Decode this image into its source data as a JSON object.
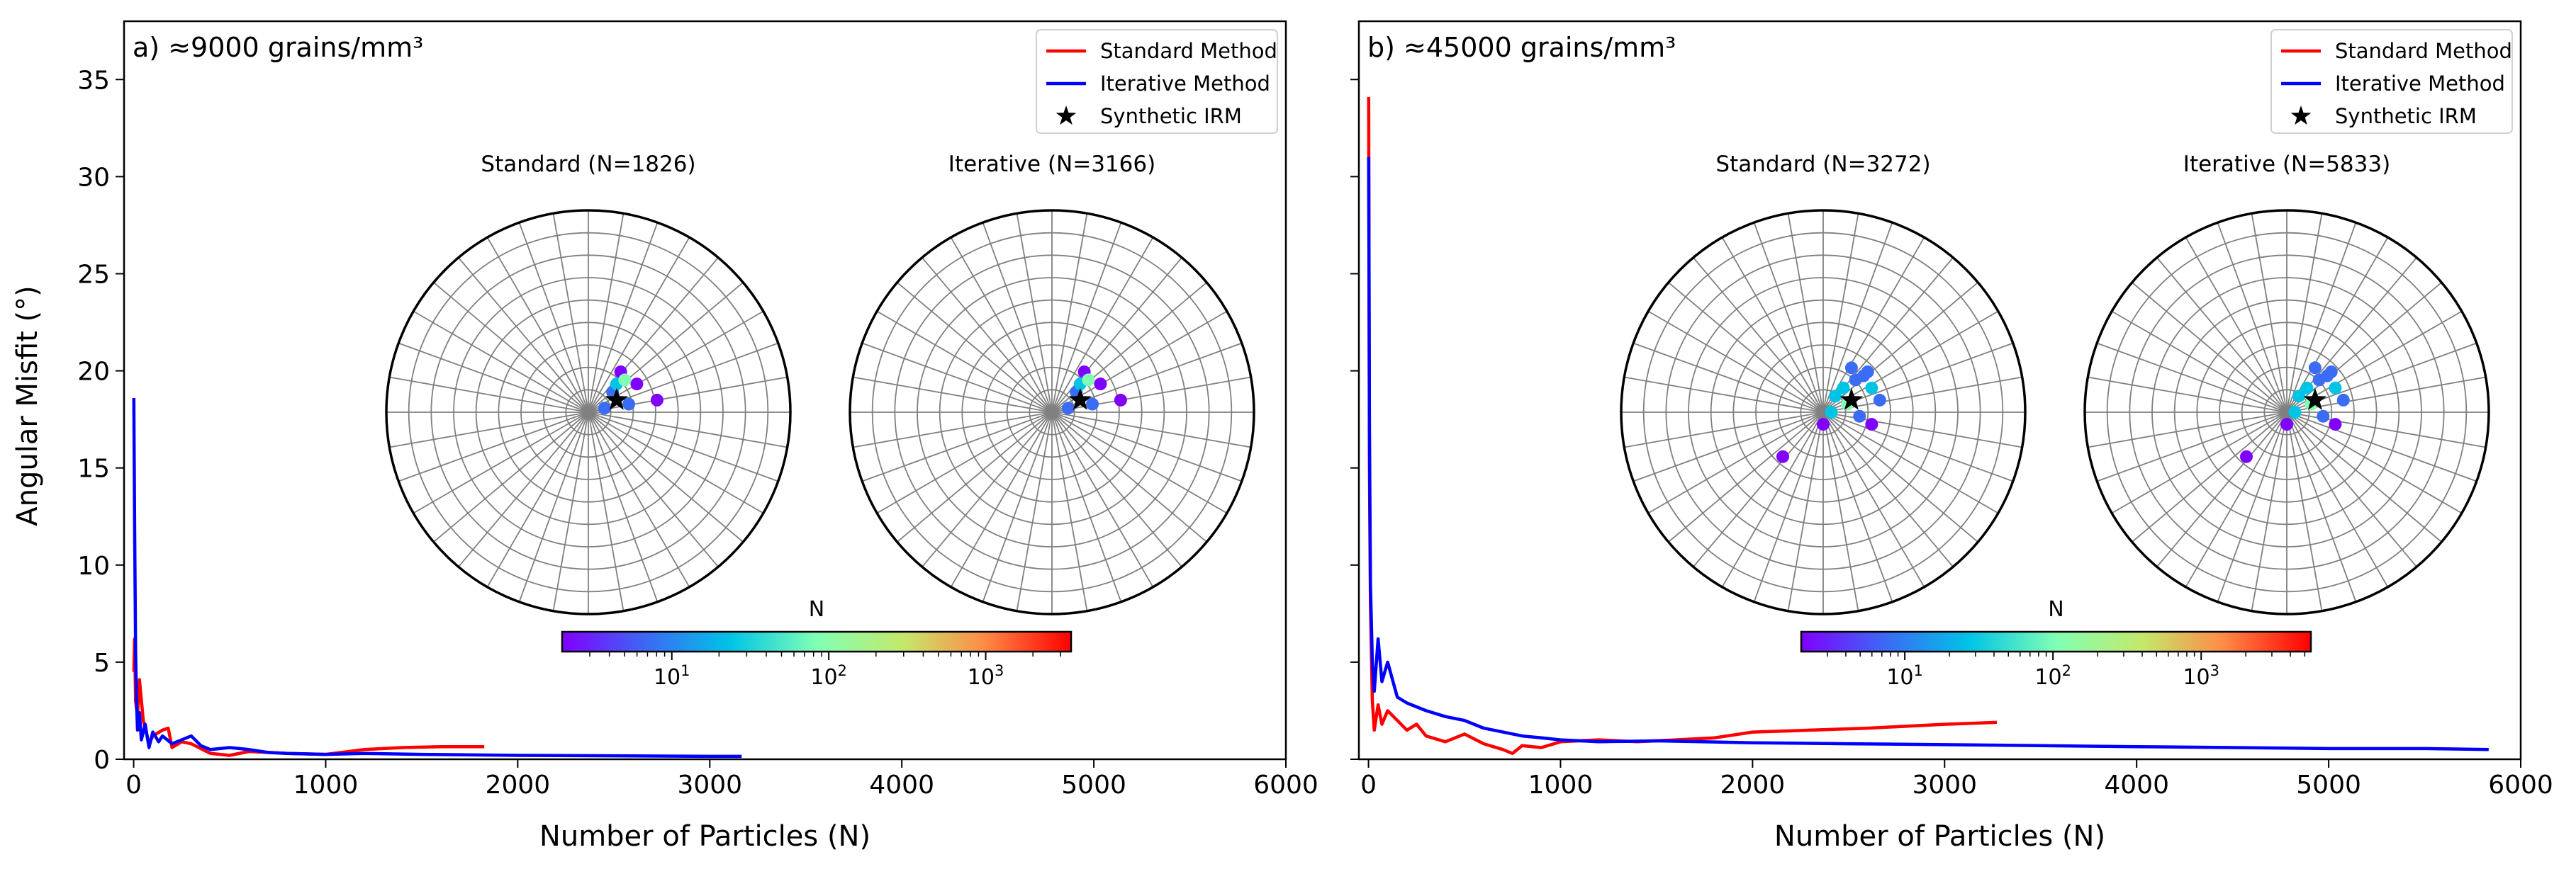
{
  "figure": {
    "ylabel": "Angular Misfit (°)"
  },
  "chart_data": [
    {
      "type": "line",
      "panel_label": "a) ≈9000 grains/mm³",
      "xlabel": "Number of Particles (N)",
      "ylabel": "Angular Misfit (°)",
      "xlim": [
        -50,
        6000
      ],
      "ylim": [
        0,
        38
      ],
      "xticks": [
        0,
        1000,
        2000,
        3000,
        4000,
        5000,
        6000
      ],
      "yticks": [
        0,
        5,
        10,
        15,
        20,
        25,
        30,
        35
      ],
      "grid": false,
      "legend": {
        "placement": "top-right",
        "entries": [
          "Standard Method",
          "Iterative Method",
          "Synthetic IRM"
        ]
      },
      "series": [
        {
          "name": "Standard Method",
          "color": "#ff0000",
          "x": [
            1,
            5,
            10,
            20,
            30,
            50,
            80,
            100,
            150,
            180,
            200,
            250,
            300,
            400,
            500,
            600,
            700,
            800,
            1000,
            1200,
            1400,
            1600,
            1826
          ],
          "y": [
            4.5,
            6.2,
            3.0,
            2.2,
            4.1,
            2.0,
            0.8,
            1.2,
            1.5,
            1.6,
            0.6,
            0.9,
            0.8,
            0.3,
            0.2,
            0.4,
            0.35,
            0.3,
            0.25,
            0.5,
            0.6,
            0.65,
            0.65
          ]
        },
        {
          "name": "Iterative Method",
          "color": "#0000ff",
          "x": [
            1,
            5,
            10,
            15,
            20,
            30,
            40,
            60,
            80,
            100,
            130,
            150,
            200,
            250,
            300,
            350,
            400,
            500,
            600,
            700,
            800,
            1000,
            1200,
            1500,
            2000,
            2500,
            3000,
            3166
          ],
          "y": [
            18.6,
            12.0,
            5.5,
            3.0,
            1.5,
            2.4,
            1.0,
            1.8,
            0.6,
            1.4,
            0.9,
            1.2,
            0.8,
            1.0,
            1.2,
            0.7,
            0.5,
            0.6,
            0.5,
            0.35,
            0.3,
            0.25,
            0.3,
            0.25,
            0.2,
            0.18,
            0.15,
            0.15
          ]
        }
      ],
      "insets": [
        {
          "title": "Standard (N=1826)",
          "points": [
            [
              0.56,
              0.45
            ],
            [
              0.58,
              0.4
            ],
            [
              0.6,
              0.48
            ],
            [
              0.62,
              0.43
            ],
            [
              0.57,
              0.43
            ],
            [
              0.59,
              0.42
            ],
            [
              0.67,
              0.47
            ],
            [
              0.54,
              0.49
            ]
          ],
          "point_levels": [
            0.2,
            0.0,
            0.3,
            0.15,
            0.45,
            0.55,
            0.1,
            0.25
          ],
          "star": [
            0.57,
            0.47
          ]
        },
        {
          "title": "Iterative (N=3166)",
          "points": [
            [
              0.56,
              0.45
            ],
            [
              0.58,
              0.4
            ],
            [
              0.6,
              0.48
            ],
            [
              0.62,
              0.43
            ],
            [
              0.57,
              0.43
            ],
            [
              0.59,
              0.42
            ],
            [
              0.67,
              0.47
            ],
            [
              0.54,
              0.49
            ]
          ],
          "point_levels": [
            0.2,
            0.0,
            0.3,
            0.15,
            0.45,
            0.55,
            0.1,
            0.25
          ],
          "star": [
            0.57,
            0.47
          ]
        }
      ],
      "colorbar": {
        "label": "N",
        "ticks": [
          "10",
          "10",
          "10"
        ],
        "exponents": [
          "1",
          "2",
          "3"
        ],
        "tick_values": [
          10,
          100,
          1000
        ],
        "range": [
          2,
          3500
        ],
        "scale": "log",
        "colormap": "rainbow"
      }
    },
    {
      "type": "line",
      "panel_label": "b) ≈45000 grains/mm³",
      "xlabel": "Number of Particles (N)",
      "ylabel": "",
      "xlim": [
        -50,
        6000
      ],
      "ylim": [
        0,
        38
      ],
      "xticks": [
        0,
        1000,
        2000,
        3000,
        4000,
        5000,
        6000
      ],
      "yticks": [
        0,
        5,
        10,
        15,
        20,
        25,
        30,
        35
      ],
      "grid": false,
      "legend": {
        "placement": "top-right",
        "entries": [
          "Standard Method",
          "Iterative Method",
          "Synthetic IRM"
        ]
      },
      "series": [
        {
          "name": "Standard Method",
          "color": "#ff0000",
          "x": [
            1,
            5,
            10,
            20,
            30,
            50,
            70,
            100,
            150,
            200,
            250,
            300,
            400,
            500,
            600,
            700,
            750,
            800,
            900,
            1000,
            1200,
            1400,
            1600,
            1800,
            2000,
            2300,
            2600,
            3000,
            3272
          ],
          "y": [
            34.1,
            15.0,
            8.0,
            3.0,
            1.5,
            2.8,
            1.8,
            2.5,
            2.0,
            1.5,
            1.8,
            1.2,
            0.9,
            1.3,
            0.8,
            0.5,
            0.3,
            0.7,
            0.6,
            0.9,
            1.0,
            0.9,
            1.0,
            1.1,
            1.4,
            1.5,
            1.6,
            1.8,
            1.9
          ]
        },
        {
          "name": "Iterative Method",
          "color": "#0000ff",
          "x": [
            1,
            5,
            10,
            20,
            30,
            50,
            70,
            100,
            150,
            200,
            250,
            300,
            400,
            500,
            600,
            700,
            800,
            900,
            1000,
            1200,
            1500,
            2000,
            2500,
            3000,
            3500,
            4000,
            4500,
            5000,
            5500,
            5833
          ],
          "y": [
            31.0,
            17.0,
            9.0,
            5.0,
            3.5,
            6.2,
            4.0,
            5.0,
            3.2,
            2.9,
            2.7,
            2.5,
            2.2,
            2.0,
            1.6,
            1.4,
            1.2,
            1.1,
            1.0,
            0.9,
            0.95,
            0.85,
            0.8,
            0.75,
            0.7,
            0.65,
            0.6,
            0.55,
            0.55,
            0.5
          ]
        }
      ],
      "insets": [
        {
          "title": "Standard (N=3272)",
          "points": [
            [
              0.55,
              0.44
            ],
            [
              0.57,
              0.39
            ],
            [
              0.58,
              0.42
            ],
            [
              0.6,
              0.41
            ],
            [
              0.62,
              0.44
            ],
            [
              0.64,
              0.47
            ],
            [
              0.56,
              0.48
            ],
            [
              0.52,
              0.5
            ],
            [
              0.59,
              0.51
            ],
            [
              0.61,
              0.4
            ],
            [
              0.53,
              0.46
            ],
            [
              0.4,
              0.61
            ],
            [
              0.62,
              0.53
            ],
            [
              0.5,
              0.53
            ]
          ],
          "point_levels": [
            0.4,
            0.2,
            0.3,
            0.25,
            0.35,
            0.3,
            0.5,
            0.45,
            0.3,
            0.2,
            0.4,
            0.0,
            0.1,
            0.05
          ],
          "star": [
            0.57,
            0.47
          ]
        },
        {
          "title": "Iterative (N=5833)",
          "points": [
            [
              0.55,
              0.44
            ],
            [
              0.57,
              0.39
            ],
            [
              0.58,
              0.42
            ],
            [
              0.6,
              0.41
            ],
            [
              0.62,
              0.44
            ],
            [
              0.64,
              0.47
            ],
            [
              0.56,
              0.48
            ],
            [
              0.52,
              0.5
            ],
            [
              0.59,
              0.51
            ],
            [
              0.61,
              0.4
            ],
            [
              0.53,
              0.46
            ],
            [
              0.4,
              0.61
            ],
            [
              0.62,
              0.53
            ],
            [
              0.5,
              0.53
            ]
          ],
          "point_levels": [
            0.4,
            0.2,
            0.3,
            0.25,
            0.35,
            0.3,
            0.5,
            0.45,
            0.3,
            0.2,
            0.4,
            0.0,
            0.1,
            0.05
          ],
          "star": [
            0.57,
            0.47
          ]
        }
      ],
      "colorbar": {
        "label": "N",
        "ticks": [
          "10",
          "10",
          "10"
        ],
        "exponents": [
          "1",
          "2",
          "3"
        ],
        "tick_values": [
          10,
          100,
          1000
        ],
        "range": [
          2,
          5500
        ],
        "scale": "log",
        "colormap": "rainbow"
      }
    }
  ]
}
